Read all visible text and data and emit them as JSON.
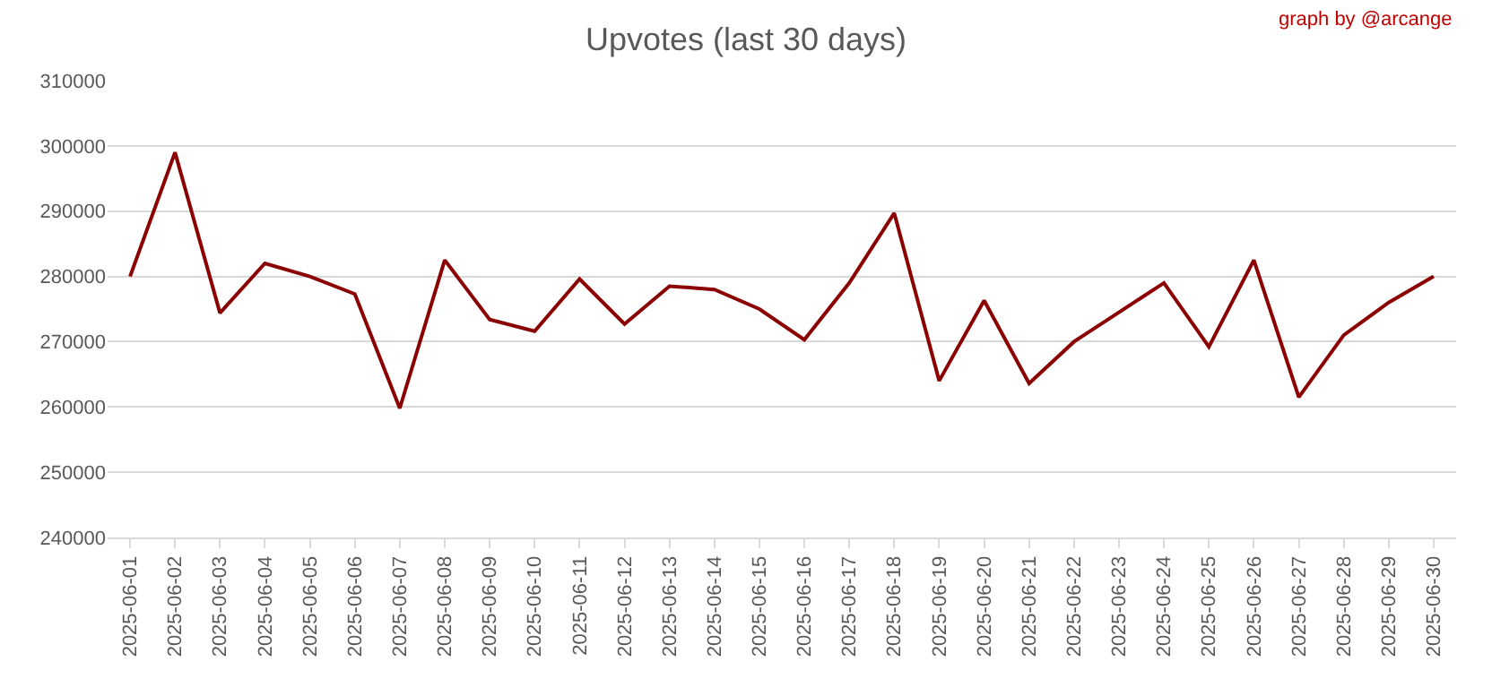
{
  "chart_data": {
    "type": "line",
    "title": "Upvotes (last 30 days)",
    "annotations": [
      "graph by @arcange"
    ],
    "categories": [
      "2025-06-01",
      "2025-06-02",
      "2025-06-03",
      "2025-06-04",
      "2025-06-05",
      "2025-06-06",
      "2025-06-07",
      "2025-06-08",
      "2025-06-09",
      "2025-06-10",
      "2025-06-11",
      "2025-06-12",
      "2025-06-13",
      "2025-06-14",
      "2025-06-15",
      "2025-06-16",
      "2025-06-17",
      "2025-06-18",
      "2025-06-19",
      "2025-06-20",
      "2025-06-21",
      "2025-06-22",
      "2025-06-23",
      "2025-06-24",
      "2025-06-25",
      "2025-06-26",
      "2025-06-27",
      "2025-06-28",
      "2025-06-29",
      "2025-06-30"
    ],
    "series": [
      {
        "color": "#8b0000",
        "values": [
          280000,
          299000,
          274400,
          282000,
          280000,
          277300,
          259800,
          282500,
          273400,
          271600,
          279600,
          272700,
          278500,
          278000,
          275000,
          270300,
          279000,
          289700,
          264000,
          276300,
          263600,
          270000,
          274500,
          279000,
          269200,
          282500,
          261500,
          271000,
          276000,
          280000
        ]
      }
    ],
    "ylim": [
      240000,
      310000
    ],
    "yticks": [
      240000,
      250000,
      260000,
      270000,
      280000,
      290000,
      300000,
      310000
    ],
    "grid": "y",
    "legend": false,
    "marker": "none",
    "line_style": "solid"
  }
}
